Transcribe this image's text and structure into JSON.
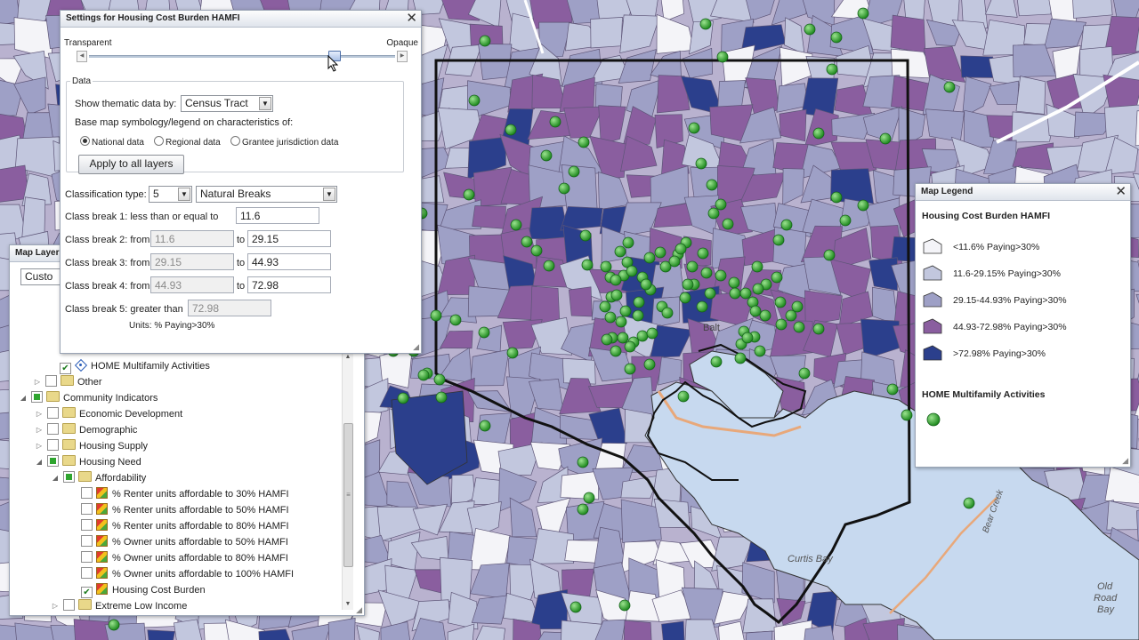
{
  "colors": {
    "class1": "#f4f4f8",
    "class2": "#c2c7de",
    "class3": "#9ea0c6",
    "class4": "#8a5e9f",
    "class5": "#2b3f8c",
    "water": "#c7d9ef",
    "point": "#2fa52f"
  },
  "settings": {
    "title": "Settings for Housing Cost Burden HAMFI",
    "slider_min_label": "Transparent",
    "slider_max_label": "Opaque",
    "opacity_value": 0.8,
    "data_group_label": "Data",
    "show_by_label": "Show thematic data by:",
    "show_by_value": "Census Tract",
    "base_symbology_label": "Base map symbology/legend on characteristics of:",
    "radio_national": "National data",
    "radio_regional": "Regional data",
    "radio_grantee": "Grantee jurisdiction data",
    "apply_button": "Apply to all layers",
    "classification_label": "Classification type:",
    "classification_count": "5",
    "classification_method": "Natural Breaks",
    "cb1_label": "Class break 1: less than or equal to",
    "cb1_value": "11.6",
    "cb2_label": "Class break 2:  from",
    "cb2_from": "11.6",
    "cb2_to": "29.15",
    "cb3_label": "Class break 3:  from",
    "cb3_from": "29.15",
    "cb3_to": "44.93",
    "cb4_label": "Class break 4:  from",
    "cb4_from": "44.93",
    "cb4_to": "72.98",
    "cb5_label": "Class break 5:  greater than",
    "cb5_value": "72.98",
    "to_label": "to",
    "units_label": "Units: % Paying>30%"
  },
  "layers": {
    "title": "Map Layers",
    "title_visible": "Map Layer",
    "select_value": "Custom",
    "select_visible": "Custo",
    "items": {
      "home_multifamily": "HOME Multifamily Activities",
      "other": "Other",
      "community_indicators": "Community Indicators",
      "economic_development": "Economic Development",
      "demographic": "Demographic",
      "housing_supply": "Housing Supply",
      "housing_need": "Housing Need",
      "affordability": "Affordability",
      "renter30": "% Renter units affordable to 30% HAMFI",
      "renter50": "% Renter units affordable to 50% HAMFI",
      "renter80": "% Renter units affordable to 80% HAMFI",
      "owner50": "% Owner units affordable to 50% HAMFI",
      "owner80": "% Owner units affordable to 80% HAMFI",
      "owner100": "% Owner units affordable to 100% HAMFI",
      "cost_burden": "Housing Cost Burden",
      "extreme_low": "Extreme Low Income"
    }
  },
  "legend": {
    "title": "Map Legend",
    "layer_title": "Housing Cost Burden HAMFI",
    "classes": [
      "<11.6% Paying>30%",
      "11.6-29.15% Paying>30%",
      "29.15-44.93% Paying>30%",
      "44.93-72.98% Paying>30%",
      ">72.98% Paying>30%"
    ],
    "points_title": "HOME Multifamily Activities"
  },
  "map": {
    "labels": {
      "curtis_bay": "Curtis Bay",
      "old_road_bay_1": "Old",
      "old_road_bay_2": "Road",
      "old_road_bay_3": "Bay",
      "bear_creek": "Bear Creek",
      "balt": "Balt"
    }
  }
}
